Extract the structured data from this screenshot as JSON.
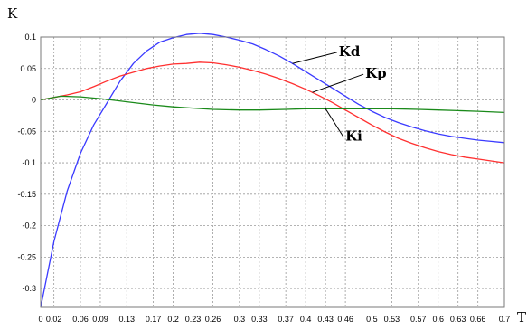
{
  "chart_data": {
    "type": "line",
    "ylabel": "K",
    "xlabel": "T",
    "xlim": [
      0,
      0.7
    ],
    "ylim": [
      -0.33,
      0.1
    ],
    "grid": true,
    "x_ticks": [
      "0",
      "0.02",
      "0.06",
      "0.09",
      "0.13",
      "0.17",
      "0.2",
      "0.23",
      "0.26",
      "0.3",
      "0.33",
      "0.37",
      "0.4",
      "0.43",
      "0.46",
      "0.5",
      "0.53",
      "0.57",
      "0.6",
      "0.63",
      "0.66",
      "0.7"
    ],
    "y_ticks": [
      "0.1",
      "0.05",
      "0",
      "-0.05",
      "-0.1",
      "-0.15",
      "-0.2",
      "-0.25",
      "-0.3"
    ],
    "series": [
      {
        "name": "Kd",
        "color": "#3a3aff",
        "x": [
          0,
          0.02,
          0.04,
          0.06,
          0.08,
          0.1,
          0.12,
          0.14,
          0.16,
          0.18,
          0.2,
          0.22,
          0.24,
          0.26,
          0.28,
          0.3,
          0.32,
          0.34,
          0.36,
          0.38,
          0.4,
          0.42,
          0.44,
          0.46,
          0.48,
          0.5,
          0.52,
          0.54,
          0.56,
          0.58,
          0.6,
          0.62,
          0.64,
          0.66,
          0.68,
          0.7
        ],
        "y": [
          -0.33,
          -0.225,
          -0.145,
          -0.085,
          -0.04,
          -0.005,
          0.03,
          0.058,
          0.078,
          0.092,
          0.099,
          0.104,
          0.106,
          0.104,
          0.1,
          0.095,
          0.089,
          0.08,
          0.07,
          0.058,
          0.045,
          0.032,
          0.019,
          0.006,
          -0.007,
          -0.018,
          -0.028,
          -0.036,
          -0.043,
          -0.049,
          -0.054,
          -0.058,
          -0.061,
          -0.064,
          -0.066,
          -0.068
        ]
      },
      {
        "name": "Kp",
        "color": "#ff3030",
        "x": [
          0,
          0.02,
          0.04,
          0.06,
          0.08,
          0.1,
          0.12,
          0.14,
          0.16,
          0.18,
          0.2,
          0.22,
          0.24,
          0.26,
          0.28,
          0.3,
          0.32,
          0.34,
          0.36,
          0.38,
          0.4,
          0.42,
          0.44,
          0.46,
          0.48,
          0.5,
          0.52,
          0.54,
          0.56,
          0.58,
          0.6,
          0.62,
          0.64,
          0.66,
          0.68,
          0.7
        ],
        "y": [
          0,
          0.004,
          0.008,
          0.013,
          0.021,
          0.03,
          0.038,
          0.044,
          0.05,
          0.054,
          0.057,
          0.058,
          0.06,
          0.059,
          0.056,
          0.052,
          0.047,
          0.041,
          0.034,
          0.026,
          0.017,
          0.007,
          -0.004,
          -0.016,
          -0.028,
          -0.04,
          -0.051,
          -0.061,
          -0.069,
          -0.076,
          -0.082,
          -0.087,
          -0.091,
          -0.094,
          -0.097,
          -0.1
        ]
      },
      {
        "name": "Ki",
        "color": "#1a8a1a",
        "x": [
          0,
          0.03,
          0.06,
          0.09,
          0.13,
          0.17,
          0.2,
          0.23,
          0.26,
          0.3,
          0.33,
          0.37,
          0.4,
          0.43,
          0.46,
          0.5,
          0.53,
          0.57,
          0.6,
          0.63,
          0.66,
          0.7
        ],
        "y": [
          0,
          0.006,
          0.005,
          0.002,
          -0.003,
          -0.008,
          -0.011,
          -0.013,
          -0.015,
          -0.016,
          -0.016,
          -0.015,
          -0.014,
          -0.014,
          -0.014,
          -0.014,
          -0.014,
          -0.015,
          -0.016,
          -0.017,
          -0.018,
          -0.02
        ]
      }
    ],
    "annotations": [
      {
        "text": "Kd",
        "x": 0.45,
        "y": 0.07,
        "arrow_to_x": 0.38,
        "arrow_to_y": 0.058
      },
      {
        "text": "Kp",
        "x": 0.49,
        "y": 0.035,
        "arrow_to_x": 0.41,
        "arrow_to_y": 0.012
      },
      {
        "text": "Ki",
        "x": 0.46,
        "y": -0.065,
        "arrow_to_x": 0.43,
        "arrow_to_y": -0.014
      }
    ]
  }
}
